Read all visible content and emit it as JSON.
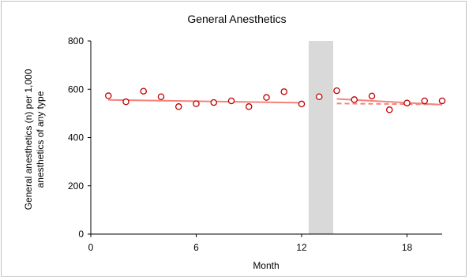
{
  "chart_data": {
    "type": "scatter",
    "title": "General Anesthetics",
    "xlabel": "Month",
    "ylabel_lines": [
      "General anesthetics (n) per 1,000",
      "anesthetics of any type"
    ],
    "xlim": [
      0,
      20
    ],
    "ylim": [
      0,
      800
    ],
    "x_ticks": [
      0,
      6,
      12,
      18
    ],
    "y_ticks": [
      0,
      200,
      400,
      600,
      800
    ],
    "shaded_region": {
      "x_start": 12.4,
      "x_end": 13.8
    },
    "points": [
      {
        "x": 1,
        "y": 573
      },
      {
        "x": 2,
        "y": 548
      },
      {
        "x": 3,
        "y": 592
      },
      {
        "x": 4,
        "y": 569
      },
      {
        "x": 5,
        "y": 528
      },
      {
        "x": 6,
        "y": 540
      },
      {
        "x": 7,
        "y": 545
      },
      {
        "x": 8,
        "y": 552
      },
      {
        "x": 9,
        "y": 528
      },
      {
        "x": 10,
        "y": 566
      },
      {
        "x": 11,
        "y": 590
      },
      {
        "x": 12,
        "y": 539
      },
      {
        "x": 13,
        "y": 569
      },
      {
        "x": 14,
        "y": 594
      },
      {
        "x": 15,
        "y": 557
      },
      {
        "x": 16,
        "y": 572
      },
      {
        "x": 17,
        "y": 515
      },
      {
        "x": 18,
        "y": 543
      },
      {
        "x": 19,
        "y": 552
      },
      {
        "x": 20,
        "y": 552
      }
    ],
    "trend_pre": {
      "x": [
        1,
        12
      ],
      "y": [
        556,
        544
      ]
    },
    "trend_post": {
      "x": [
        14,
        20
      ],
      "y": [
        560,
        536
      ]
    },
    "counterfactual": {
      "x": [
        14,
        20
      ],
      "y": [
        541,
        537
      ]
    },
    "colors": {
      "points": "#c00000",
      "trend": "#f4827c",
      "shade": "#d9d9d9",
      "axis": "#000000"
    }
  }
}
